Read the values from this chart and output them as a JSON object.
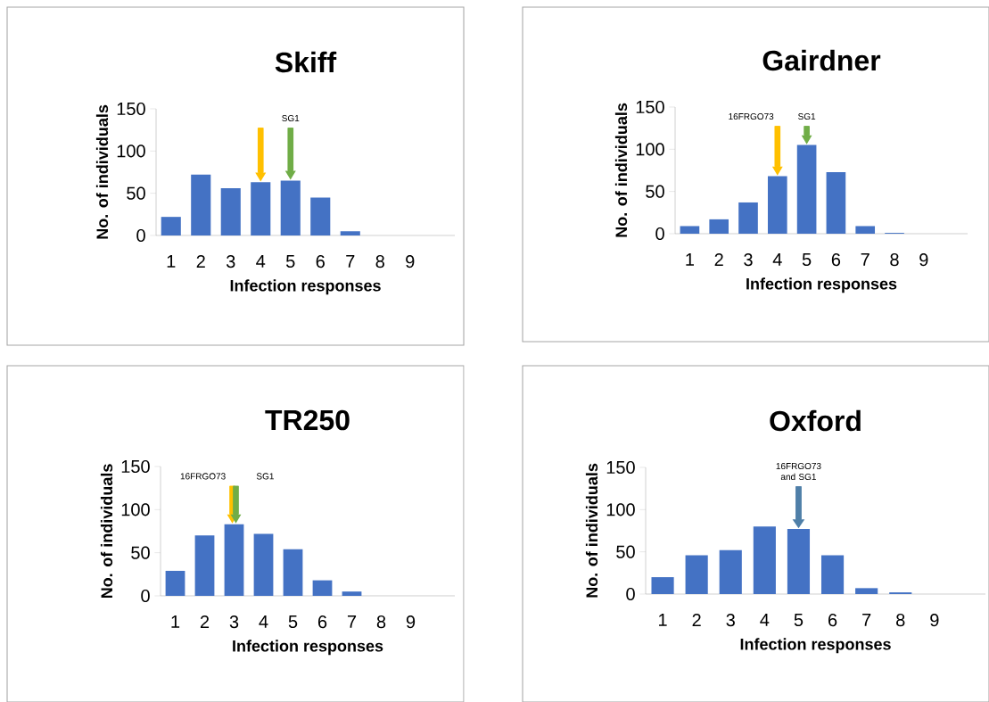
{
  "chart_data": [
    {
      "type": "bar",
      "title": "Skiff",
      "xlabel": "Infection responses",
      "ylabel": "No. of individuals",
      "categories": [
        "1",
        "2",
        "3",
        "4",
        "5",
        "6",
        "7",
        "8",
        "9",
        null
      ],
      "values": [
        22,
        72,
        56,
        63,
        65,
        45,
        5,
        0,
        0,
        0
      ],
      "color": "#4472c4",
      "ylim": [
        0,
        150
      ],
      "yticks": [
        0,
        50,
        100,
        150
      ],
      "ref_lines": [
        {
          "axis": "x",
          "value": "4",
          "color": "#ffc000"
        },
        {
          "axis": "x",
          "value": "5",
          "color": "#70ad47",
          "label": "SG1"
        }
      ]
    },
    {
      "type": "bar",
      "title": "Gairdner",
      "xlabel": "Infection responses",
      "ylabel": "No. of individuals",
      "categories": [
        "1",
        "2",
        "3",
        "4",
        "5",
        "6",
        "7",
        "8",
        "9",
        null
      ],
      "values": [
        9,
        17,
        37,
        68,
        105,
        73,
        9,
        1,
        0,
        0
      ],
      "color": "#4472c4",
      "ylim": [
        0,
        150
      ],
      "yticks": [
        0,
        50,
        100,
        150
      ],
      "ref_lines": [
        {
          "axis": "x",
          "value": "4",
          "color": "#ffc000",
          "label": "16FRGO73"
        },
        {
          "axis": "x",
          "value": "5",
          "color": "#70ad47",
          "label": "SG1"
        }
      ]
    },
    {
      "type": "bar",
      "title": "TR250",
      "xlabel": "Infection responses",
      "ylabel": "No. of individuals",
      "categories": [
        "1",
        "2",
        "3",
        "4",
        "5",
        "6",
        "7",
        "8",
        "9",
        null
      ],
      "values": [
        29,
        70,
        83,
        72,
        54,
        18,
        5,
        0,
        0,
        0
      ],
      "color": "#4472c4",
      "ylim": [
        0,
        150
      ],
      "yticks": [
        0,
        50,
        100,
        150
      ],
      "ref_lines": [
        {
          "axis": "x",
          "value": "3",
          "color": "#ffc000",
          "label": "16FRGO73"
        },
        {
          "axis": "x",
          "value": "3",
          "color": "#70ad47",
          "label": "SG1"
        }
      ]
    },
    {
      "type": "bar",
      "title": "Oxford",
      "xlabel": "Infection responses",
      "ylabel": "No. of individuals",
      "categories": [
        "1",
        "2",
        "3",
        "4",
        "5",
        "6",
        "7",
        "8",
        "9",
        null
      ],
      "values": [
        20,
        46,
        52,
        80,
        77,
        46,
        7,
        2,
        0,
        0
      ],
      "color": "#4472c4",
      "ylim": [
        0,
        150
      ],
      "yticks": [
        0,
        50,
        100,
        150
      ],
      "ref_lines": [
        {
          "axis": "x",
          "value": "5",
          "color": "#4f7fa8",
          "label": "16FRGO73 and SG1"
        }
      ]
    }
  ]
}
